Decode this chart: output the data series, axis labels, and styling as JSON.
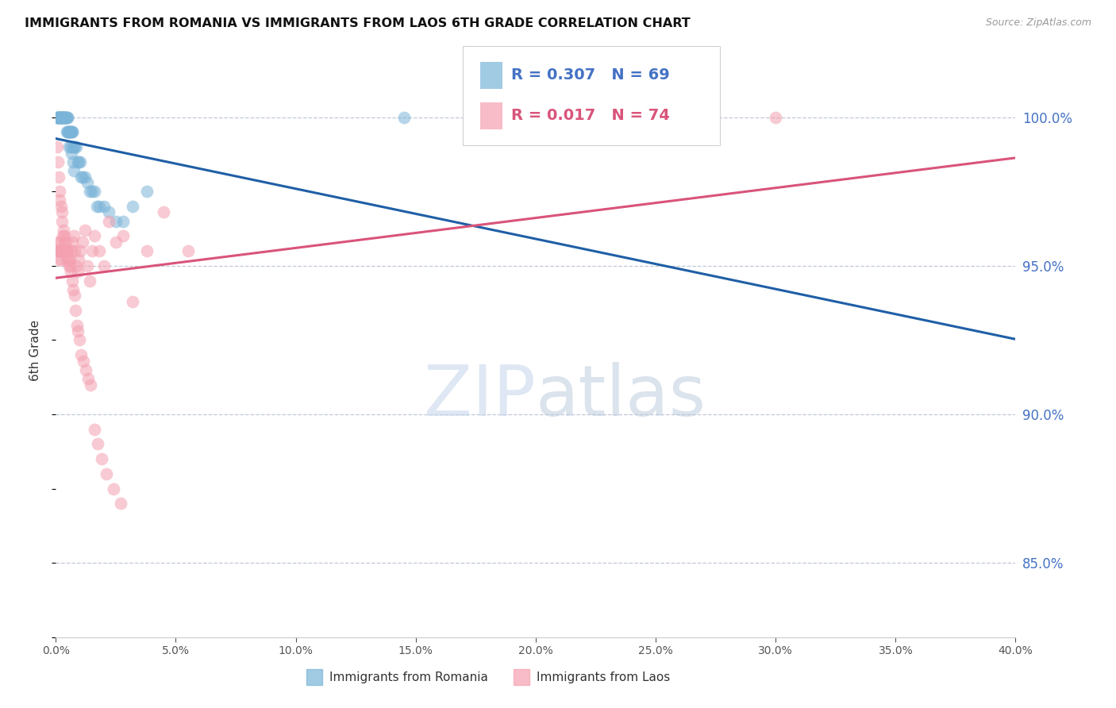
{
  "title": "IMMIGRANTS FROM ROMANIA VS IMMIGRANTS FROM LAOS 6TH GRADE CORRELATION CHART",
  "source": "Source: ZipAtlas.com",
  "ylabel": "6th Grade",
  "right_yticks": [
    85.0,
    90.0,
    95.0,
    100.0
  ],
  "xlim": [
    0.0,
    40.0
  ],
  "ylim": [
    82.5,
    101.8
  ],
  "romania_color": "#7ab4d8",
  "laos_color": "#f4a0b0",
  "romania_line_color": "#1f5fa6",
  "laos_line_color": "#d9547a",
  "legend_r_romania": "R = 0.307",
  "legend_n_romania": "N = 69",
  "legend_r_laos": "R = 0.017",
  "legend_n_laos": "N = 74",
  "romania_x": [
    0.05,
    0.08,
    0.1,
    0.12,
    0.15,
    0.18,
    0.2,
    0.22,
    0.25,
    0.28,
    0.3,
    0.32,
    0.35,
    0.38,
    0.4,
    0.42,
    0.45,
    0.48,
    0.5,
    0.52,
    0.55,
    0.58,
    0.6,
    0.62,
    0.65,
    0.68,
    0.7,
    0.72,
    0.75,
    0.8,
    0.85,
    0.9,
    0.95,
    1.0,
    1.05,
    1.1,
    1.2,
    1.3,
    1.4,
    1.5,
    1.6,
    1.7,
    1.8,
    2.0,
    2.2,
    2.5,
    2.8,
    3.2,
    3.8,
    0.06,
    0.09,
    0.11,
    0.14,
    0.17,
    0.21,
    0.24,
    0.27,
    0.31,
    0.36,
    0.39,
    0.44,
    0.47,
    0.51,
    0.56,
    0.61,
    0.66,
    0.71,
    0.76,
    14.5
  ],
  "romania_y": [
    100.0,
    100.0,
    100.0,
    100.0,
    100.0,
    100.0,
    100.0,
    100.0,
    100.0,
    100.0,
    100.0,
    100.0,
    100.0,
    100.0,
    100.0,
    100.0,
    100.0,
    100.0,
    100.0,
    99.5,
    99.5,
    99.5,
    99.5,
    99.5,
    99.5,
    99.5,
    99.5,
    99.0,
    99.0,
    99.0,
    99.0,
    98.5,
    98.5,
    98.5,
    98.0,
    98.0,
    98.0,
    97.8,
    97.5,
    97.5,
    97.5,
    97.0,
    97.0,
    97.0,
    96.8,
    96.5,
    96.5,
    97.0,
    97.5,
    100.0,
    100.0,
    100.0,
    100.0,
    100.0,
    100.0,
    100.0,
    100.0,
    100.0,
    100.0,
    100.0,
    99.5,
    99.5,
    99.5,
    99.0,
    99.0,
    98.8,
    98.5,
    98.2,
    100.0
  ],
  "laos_x": [
    0.05,
    0.08,
    0.1,
    0.12,
    0.15,
    0.18,
    0.2,
    0.22,
    0.25,
    0.28,
    0.3,
    0.35,
    0.4,
    0.45,
    0.5,
    0.55,
    0.6,
    0.65,
    0.7,
    0.75,
    0.8,
    0.85,
    0.9,
    0.95,
    1.0,
    1.1,
    1.2,
    1.3,
    1.4,
    1.5,
    1.6,
    1.8,
    2.0,
    2.2,
    2.5,
    2.8,
    3.2,
    3.8,
    4.5,
    5.5,
    0.06,
    0.09,
    0.11,
    0.14,
    0.17,
    0.21,
    0.24,
    0.27,
    0.33,
    0.37,
    0.42,
    0.47,
    0.52,
    0.57,
    0.62,
    0.67,
    0.72,
    0.77,
    0.82,
    0.88,
    0.93,
    0.98,
    1.05,
    1.15,
    1.25,
    1.35,
    1.45,
    1.6,
    1.75,
    1.9,
    2.1,
    2.4,
    2.7,
    30.0
  ],
  "laos_y": [
    95.5,
    95.8,
    95.5,
    95.2,
    95.5,
    95.8,
    95.5,
    95.2,
    95.5,
    96.0,
    95.5,
    95.8,
    95.5,
    95.2,
    95.5,
    95.0,
    95.2,
    95.5,
    95.8,
    96.0,
    95.5,
    95.0,
    94.8,
    95.2,
    95.5,
    95.8,
    96.2,
    95.0,
    94.5,
    95.5,
    96.0,
    95.5,
    95.0,
    96.5,
    95.8,
    96.0,
    93.8,
    95.5,
    96.8,
    95.5,
    99.0,
    98.5,
    98.0,
    97.5,
    97.2,
    97.0,
    96.8,
    96.5,
    96.2,
    96.0,
    95.8,
    95.5,
    95.2,
    95.0,
    94.8,
    94.5,
    94.2,
    94.0,
    93.5,
    93.0,
    92.8,
    92.5,
    92.0,
    91.8,
    91.5,
    91.2,
    91.0,
    89.5,
    89.0,
    88.5,
    88.0,
    87.5,
    87.0,
    100.0
  ],
  "watermark": "ZIPatlas",
  "bottom_legend_romania": "Immigrants from Romania",
  "bottom_legend_laos": "Immigrants from Laos"
}
